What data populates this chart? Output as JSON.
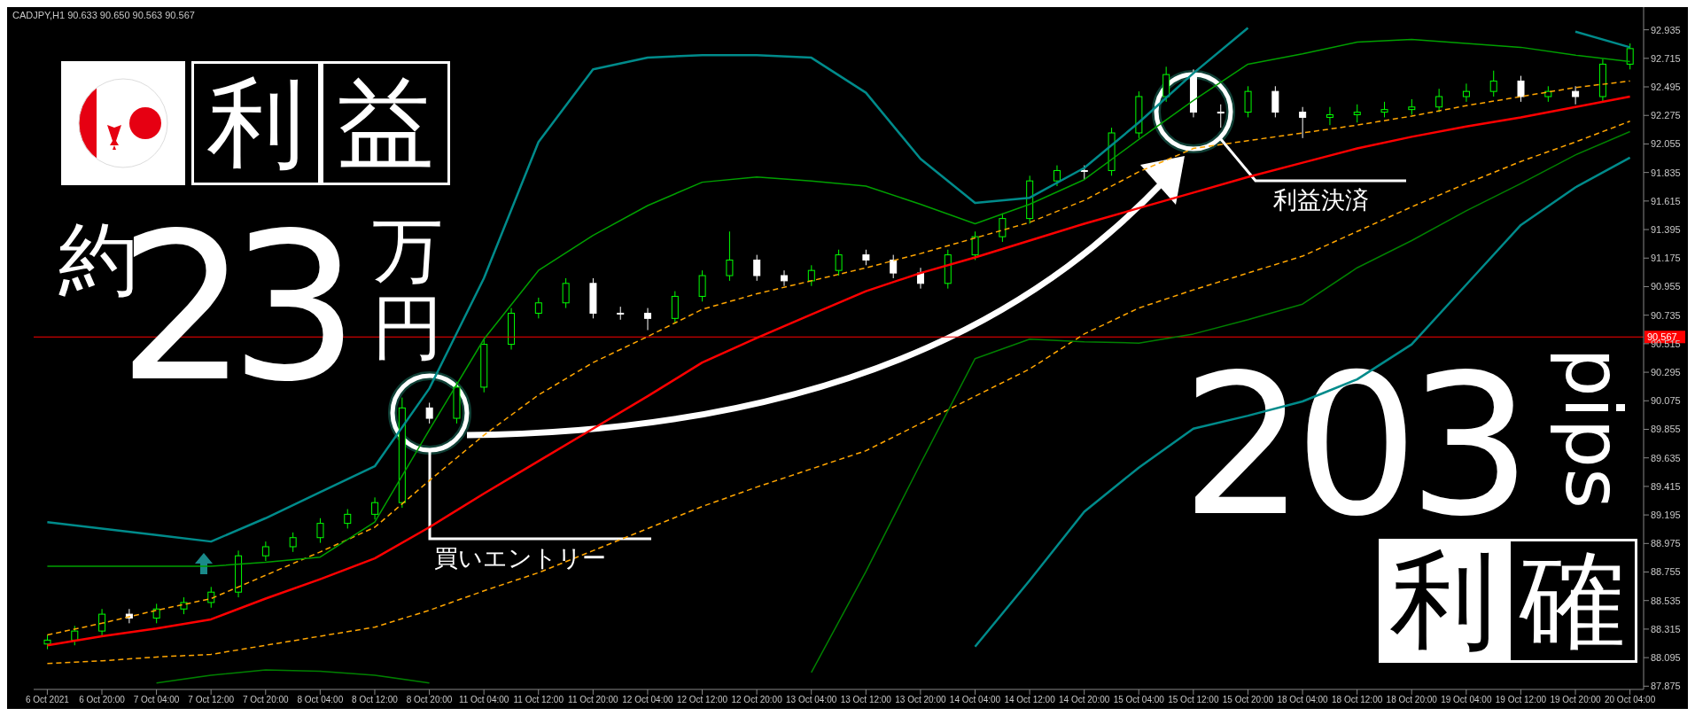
{
  "chart_data": {
    "type": "candlestick",
    "title": "CADJPY,H1  90.633 90.650 90.563 90.567",
    "categories": [
      "6 Oct 2021",
      null,
      "6 Oct 20:00",
      null,
      "7 Oct 04:00",
      null,
      "7 Oct 12:00",
      null,
      "7 Oct 20:00",
      null,
      "8 Oct 04:00",
      null,
      "8 Oct 12:00",
      null,
      "8 Oct 20:00",
      null,
      "11 Oct 04:00",
      null,
      "11 Oct 12:00",
      null,
      "11 Oct 20:00",
      null,
      "12 Oct 04:00",
      null,
      "12 Oct 12:00",
      null,
      "12 Oct 20:00",
      null,
      "13 Oct 04:00",
      null,
      "13 Oct 12:00",
      null,
      "13 Oct 20:00",
      null,
      "14 Oct 04:00",
      null,
      "14 Oct 12:00",
      null,
      "14 Oct 20:00",
      null,
      "15 Oct 04:00",
      null,
      "15 Oct 12:00",
      null,
      "15 Oct 20:00",
      null,
      "18 Oct 04:00",
      null,
      "18 Oct 12:00",
      null,
      "18 Oct 20:00",
      null,
      "19 Oct 04:00",
      null,
      "19 Oct 12:00",
      null,
      "19 Oct 20:00",
      null,
      "20 Oct 04:00"
    ],
    "ohlc": [
      [
        88.2,
        88.27,
        88.16,
        88.23
      ],
      [
        88.23,
        88.34,
        88.19,
        88.3
      ],
      [
        88.3,
        88.47,
        88.26,
        88.43
      ],
      [
        88.43,
        88.47,
        88.36,
        88.4
      ],
      [
        88.4,
        88.51,
        88.36,
        88.47
      ],
      [
        88.47,
        88.56,
        88.43,
        88.52
      ],
      [
        88.52,
        88.64,
        88.48,
        88.6
      ],
      [
        88.6,
        88.92,
        88.56,
        88.88
      ],
      [
        88.88,
        88.99,
        88.84,
        88.95
      ],
      [
        88.95,
        89.06,
        88.91,
        89.02
      ],
      [
        89.02,
        89.17,
        88.98,
        89.13
      ],
      [
        89.13,
        89.24,
        89.09,
        89.2
      ],
      [
        89.2,
        89.33,
        89.16,
        89.29
      ],
      [
        89.29,
        90.1,
        89.25,
        90.02
      ],
      [
        90.02,
        90.06,
        89.9,
        89.94
      ],
      [
        89.94,
        90.22,
        89.9,
        90.18
      ],
      [
        90.18,
        90.55,
        90.14,
        90.51
      ],
      [
        90.51,
        90.79,
        90.47,
        90.75
      ],
      [
        90.75,
        90.87,
        90.71,
        90.83
      ],
      [
        90.83,
        91.02,
        90.79,
        90.98
      ],
      [
        90.98,
        91.02,
        90.71,
        90.75
      ],
      [
        90.75,
        90.8,
        90.7,
        90.75
      ],
      [
        90.75,
        90.79,
        90.62,
        90.71
      ],
      [
        90.71,
        90.92,
        90.67,
        90.88
      ],
      [
        90.88,
        91.08,
        90.84,
        91.04
      ],
      [
        91.04,
        91.38,
        91.0,
        91.16
      ],
      [
        91.16,
        91.2,
        91.0,
        91.04
      ],
      [
        91.04,
        91.08,
        90.96,
        91.0
      ],
      [
        91.0,
        91.12,
        90.96,
        91.08
      ],
      [
        91.08,
        91.24,
        91.04,
        91.2
      ],
      [
        91.2,
        91.24,
        91.12,
        91.16
      ],
      [
        91.16,
        91.2,
        91.02,
        91.06
      ],
      [
        91.06,
        91.1,
        90.94,
        90.98
      ],
      [
        90.98,
        91.24,
        90.94,
        91.2
      ],
      [
        91.2,
        91.38,
        91.16,
        91.34
      ],
      [
        91.34,
        91.52,
        91.3,
        91.48
      ],
      [
        91.48,
        91.81,
        91.44,
        91.77
      ],
      [
        91.77,
        91.89,
        91.73,
        91.85
      ],
      [
        91.85,
        91.89,
        91.78,
        91.85
      ],
      [
        91.85,
        92.18,
        91.81,
        92.14
      ],
      [
        92.14,
        92.46,
        92.1,
        92.42
      ],
      [
        92.42,
        92.65,
        92.38,
        92.59
      ],
      [
        92.59,
        92.63,
        92.26,
        92.3
      ],
      [
        92.3,
        92.36,
        92.18,
        92.3
      ],
      [
        92.3,
        92.5,
        92.26,
        92.46
      ],
      [
        92.46,
        92.5,
        92.26,
        92.3
      ],
      [
        92.3,
        92.34,
        92.1,
        92.26
      ],
      [
        92.26,
        92.34,
        92.2,
        92.28
      ],
      [
        92.28,
        92.36,
        92.22,
        92.3
      ],
      [
        92.3,
        92.38,
        92.26,
        92.32
      ],
      [
        92.32,
        92.4,
        92.28,
        92.34
      ],
      [
        92.34,
        92.48,
        92.3,
        92.42
      ],
      [
        92.42,
        92.52,
        92.38,
        92.46
      ],
      [
        92.46,
        92.62,
        92.42,
        92.54
      ],
      [
        92.54,
        92.58,
        92.38,
        92.42
      ],
      [
        92.42,
        92.5,
        92.38,
        92.46
      ],
      [
        92.46,
        92.5,
        92.36,
        92.42
      ],
      [
        92.42,
        92.71,
        92.38,
        92.67
      ],
      [
        92.67,
        92.83,
        92.63,
        92.79
      ]
    ],
    "colors": [
      "#00ff00",
      "#00ff00",
      "#00ff00",
      "#ffffff",
      "#00ff00",
      "#00ff00",
      "#00ff00",
      "#00ff00",
      "#00ff00",
      "#00ff00",
      "#00ff00",
      "#00ff00",
      "#00ff00",
      "#00ff00",
      "#ffffff",
      "#00ff00",
      "#00ff00",
      "#00ff00",
      "#00ff00",
      "#00ff00",
      "#ffffff",
      "#ffffff",
      "#ffffff",
      "#00ff00",
      "#00ff00",
      "#00ff00",
      "#ffffff",
      "#ffffff",
      "#00ff00",
      "#00ff00",
      "#ffffff",
      "#ffffff",
      "#ffffff",
      "#00ff00",
      "#00ff00",
      "#00ff00",
      "#00ff00",
      "#00ff00",
      "#ffffff",
      "#00ff00",
      "#00ff00",
      "#00ff00",
      "#ffffff",
      "#ffffff",
      "#00ff00",
      "#ffffff",
      "#ffffff",
      "#00ff00",
      "#00ff00",
      "#00ff00",
      "#00ff00",
      "#00ff00",
      "#00ff00",
      "#00ff00",
      "#ffffff",
      "#00ff00",
      "#ffffff",
      "#00ff00",
      "#00ff00"
    ],
    "series": [
      {
        "type": "line",
        "color": "#ff0000",
        "line_style": "solid",
        "x": [
          "6 Oct 2021",
          "6 Oct 20:00",
          "7 Oct 04:00",
          "7 Oct 12:00",
          "7 Oct 20:00",
          "8 Oct 04:00",
          "8 Oct 12:00",
          "8 Oct 20:00",
          "11 Oct 04:00",
          "11 Oct 12:00",
          "11 Oct 20:00",
          "12 Oct 04:00",
          "12 Oct 12:00",
          "12 Oct 20:00",
          "13 Oct 04:00",
          "13 Oct 12:00",
          "13 Oct 20:00",
          "14 Oct 04:00",
          "14 Oct 12:00",
          "14 Oct 20:00",
          "15 Oct 04:00",
          "15 Oct 12:00",
          "15 Oct 20:00",
          "18 Oct 04:00",
          "18 Oct 12:00",
          "18 Oct 20:00",
          "19 Oct 04:00",
          "19 Oct 12:00",
          "19 Oct 20:00",
          "20 Oct 04:00"
        ],
        "values": [
          88.19,
          88.26,
          88.32,
          88.39,
          88.55,
          88.7,
          88.86,
          89.1,
          89.36,
          89.61,
          89.86,
          90.11,
          90.37,
          90.56,
          90.74,
          90.92,
          91.06,
          91.18,
          91.31,
          91.44,
          91.56,
          91.68,
          91.8,
          91.91,
          92.02,
          92.11,
          92.19,
          92.26,
          92.34,
          92.42
        ]
      },
      {
        "type": "line",
        "color": "#ffa500",
        "line_style": "dashed",
        "x": [
          "6 Oct 2021",
          "6 Oct 20:00",
          "7 Oct 04:00",
          "7 Oct 12:00",
          "7 Oct 20:00",
          "8 Oct 04:00",
          "8 Oct 12:00",
          "8 Oct 20:00",
          "11 Oct 04:00",
          "11 Oct 12:00",
          "11 Oct 20:00",
          "12 Oct 04:00",
          "12 Oct 12:00",
          "12 Oct 20:00",
          "13 Oct 04:00",
          "13 Oct 12:00",
          "13 Oct 20:00",
          "14 Oct 04:00",
          "14 Oct 12:00",
          "14 Oct 20:00",
          "15 Oct 04:00",
          "15 Oct 12:00",
          "15 Oct 20:00",
          "18 Oct 04:00",
          "18 Oct 12:00",
          "18 Oct 20:00",
          "19 Oct 04:00",
          "19 Oct 12:00",
          "19 Oct 20:00",
          "20 Oct 04:00"
        ],
        "values": [
          88.27,
          88.36,
          88.46,
          88.55,
          88.73,
          88.91,
          89.1,
          89.46,
          89.81,
          90.12,
          90.37,
          90.57,
          90.78,
          90.9,
          91.0,
          91.1,
          91.21,
          91.33,
          91.45,
          91.62,
          91.84,
          92.02,
          92.08,
          92.14,
          92.2,
          92.27,
          92.35,
          92.42,
          92.49,
          92.54
        ]
      },
      {
        "type": "line",
        "color": "#ffa500",
        "line_style": "dashed",
        "x": [
          "6 Oct 2021",
          "6 Oct 20:00",
          "7 Oct 04:00",
          "7 Oct 12:00",
          "7 Oct 20:00",
          "8 Oct 04:00",
          "8 Oct 12:00",
          "8 Oct 20:00",
          "11 Oct 04:00",
          "11 Oct 12:00",
          "11 Oct 20:00",
          "12 Oct 04:00",
          "12 Oct 12:00",
          "12 Oct 20:00",
          "13 Oct 04:00",
          "13 Oct 12:00",
          "13 Oct 20:00",
          "14 Oct 04:00",
          "14 Oct 12:00",
          "14 Oct 20:00",
          "15 Oct 04:00",
          "15 Oct 12:00",
          "15 Oct 20:00",
          "18 Oct 04:00",
          "18 Oct 12:00",
          "18 Oct 20:00",
          "19 Oct 04:00",
          "19 Oct 12:00",
          "19 Oct 20:00",
          "20 Oct 04:00"
        ],
        "values": [
          88.05,
          88.07,
          88.1,
          88.12,
          88.19,
          88.26,
          88.33,
          88.46,
          88.61,
          88.75,
          88.92,
          89.09,
          89.26,
          89.41,
          89.55,
          89.69,
          89.9,
          90.11,
          90.32,
          90.59,
          90.79,
          90.93,
          91.06,
          91.19,
          91.38,
          91.57,
          91.75,
          91.92,
          92.07,
          92.23
        ]
      },
      {
        "type": "line",
        "color": "#00a000",
        "line_style": "solid",
        "x": [
          "6 Oct 2021",
          "6 Oct 20:00",
          "7 Oct 04:00",
          "7 Oct 12:00",
          "7 Oct 20:00",
          "8 Oct 04:00",
          "8 Oct 12:00",
          "8 Oct 20:00",
          "11 Oct 04:00",
          "11 Oct 12:00",
          "11 Oct 20:00",
          "12 Oct 04:00",
          "12 Oct 12:00",
          "12 Oct 20:00",
          "13 Oct 04:00",
          "13 Oct 12:00",
          "13 Oct 20:00",
          "14 Oct 04:00",
          "14 Oct 12:00",
          "14 Oct 20:00",
          "15 Oct 04:00",
          "15 Oct 12:00",
          "15 Oct 20:00",
          "18 Oct 04:00",
          "18 Oct 12:00",
          "18 Oct 20:00",
          "19 Oct 04:00",
          "19 Oct 12:00",
          "19 Oct 20:00",
          "20 Oct 04:00"
        ],
        "values": [
          88.8,
          88.8,
          88.8,
          88.8,
          88.83,
          88.87,
          89.14,
          89.85,
          90.55,
          91.08,
          91.35,
          91.58,
          91.76,
          91.8,
          91.77,
          91.73,
          91.59,
          91.44,
          91.59,
          91.78,
          92.09,
          92.39,
          92.67,
          92.75,
          92.84,
          92.86,
          92.83,
          92.8,
          92.74,
          92.69
        ]
      },
      {
        "type": "line",
        "color": "#008000",
        "line_style": "solid",
        "x": [
          "6 Oct 2021",
          "6 Oct 20:00",
          "7 Oct 04:00",
          "7 Oct 12:00",
          "7 Oct 20:00",
          "8 Oct 04:00",
          "8 Oct 12:00",
          "8 Oct 20:00",
          "11 Oct 04:00",
          "11 Oct 12:00",
          "11 Oct 20:00",
          "12 Oct 04:00",
          "12 Oct 12:00",
          "12 Oct 20:00",
          "13 Oct 04:00",
          "13 Oct 12:00",
          "13 Oct 20:00",
          "14 Oct 04:00",
          "14 Oct 12:00",
          "14 Oct 20:00",
          "15 Oct 04:00",
          "15 Oct 12:00",
          "15 Oct 20:00",
          "18 Oct 04:00",
          "18 Oct 12:00",
          "18 Oct 20:00",
          "19 Oct 04:00",
          "19 Oct 12:00",
          "19 Oct 20:00",
          "20 Oct 04:00"
        ],
        "values": [
          null,
          null,
          87.9,
          87.96,
          88.0,
          87.99,
          87.96,
          87.9,
          null,
          null,
          null,
          null,
          null,
          null,
          87.98,
          88.76,
          89.59,
          90.4,
          90.55,
          90.53,
          90.52,
          90.59,
          90.7,
          90.82,
          91.1,
          91.31,
          91.54,
          91.75,
          91.97,
          92.15
        ]
      },
      {
        "type": "line",
        "color": "#008b8b",
        "line_style": "solid",
        "x": [
          "6 Oct 2021",
          "6 Oct 20:00",
          "7 Oct 04:00",
          "7 Oct 12:00",
          "7 Oct 20:00",
          "8 Oct 04:00",
          "8 Oct 12:00",
          "8 Oct 20:00",
          "11 Oct 04:00",
          "11 Oct 12:00",
          "11 Oct 20:00",
          "12 Oct 04:00",
          "12 Oct 12:00",
          "12 Oct 20:00",
          "13 Oct 04:00",
          "13 Oct 12:00",
          "13 Oct 20:00",
          "14 Oct 04:00",
          "14 Oct 12:00",
          "14 Oct 20:00",
          "15 Oct 04:00",
          "15 Oct 12:00",
          "15 Oct 20:00",
          "18 Oct 04:00",
          "18 Oct 12:00",
          "18 Oct 20:00",
          "19 Oct 04:00",
          "19 Oct 12:00",
          "19 Oct 20:00",
          "20 Oct 04:00"
        ],
        "values": [
          89.14,
          89.09,
          89.04,
          88.99,
          89.17,
          89.37,
          89.57,
          90.17,
          91.02,
          92.07,
          92.63,
          92.72,
          92.74,
          92.74,
          92.72,
          92.45,
          91.94,
          91.6,
          91.64,
          91.87,
          92.22,
          92.6,
          92.95,
          null,
          null,
          null,
          null,
          null,
          92.92,
          92.8
        ]
      },
      {
        "type": "line",
        "color": "#008b8b",
        "line_style": "solid",
        "x": [
          "6 Oct 2021",
          "6 Oct 20:00",
          "7 Oct 04:00",
          "7 Oct 12:00",
          "7 Oct 20:00",
          "8 Oct 04:00",
          "8 Oct 12:00",
          "8 Oct 20:00",
          "11 Oct 04:00",
          "11 Oct 12:00",
          "11 Oct 20:00",
          "12 Oct 04:00",
          "12 Oct 12:00",
          "12 Oct 20:00",
          "13 Oct 04:00",
          "13 Oct 12:00",
          "13 Oct 20:00",
          "14 Oct 04:00",
          "14 Oct 12:00",
          "14 Oct 20:00",
          "15 Oct 04:00",
          "15 Oct 12:00",
          "15 Oct 20:00",
          "18 Oct 04:00",
          "18 Oct 12:00",
          "18 Oct 20:00",
          "19 Oct 04:00",
          "19 Oct 12:00",
          "19 Oct 20:00",
          "20 Oct 04:00"
        ],
        "values": [
          null,
          null,
          null,
          null,
          null,
          null,
          null,
          null,
          null,
          null,
          null,
          null,
          null,
          null,
          null,
          null,
          null,
          88.18,
          88.69,
          89.22,
          89.56,
          89.86,
          89.96,
          90.07,
          90.24,
          90.51,
          90.97,
          91.43,
          91.72,
          91.95
        ]
      }
    ],
    "ylim": [
      87.85,
      93.11
    ],
    "yticks": [
      87.875,
      88.095,
      88.315,
      88.535,
      88.755,
      88.975,
      89.195,
      89.415,
      89.635,
      89.855,
      90.075,
      90.295,
      90.515,
      90.735,
      90.955,
      91.175,
      91.395,
      91.615,
      91.835,
      92.055,
      92.275,
      92.495,
      92.715,
      92.935
    ],
    "ref_lines": [
      {
        "axis": "y",
        "value": 90.567,
        "label": "90.567",
        "color": "#ff0000"
      }
    ],
    "annotations": [
      "利",
      "益",
      "約",
      "23",
      "万",
      "円",
      "203",
      "pips",
      "利",
      "確",
      "買いエントリー",
      "利益決済"
    ]
  }
}
